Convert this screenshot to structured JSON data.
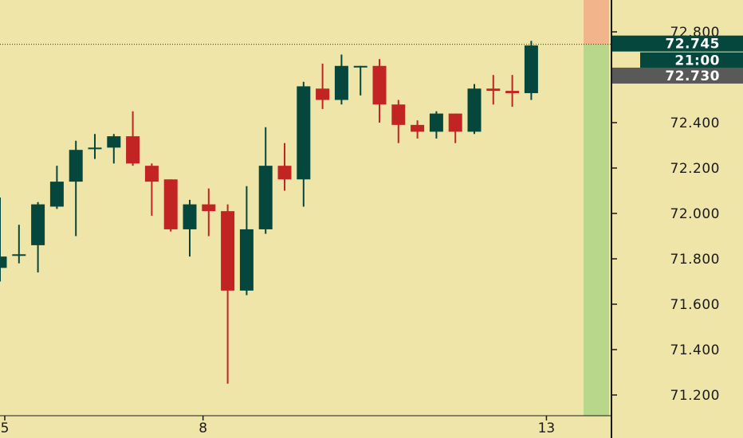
{
  "colors": {
    "background": "#efe5a8",
    "bull": "#05473c",
    "bear": "#c22424",
    "axis": "#1a1a1a",
    "zone_upper": "#f2b48a",
    "zone_lower": "#b9d78a",
    "badge_price": "#05473c",
    "badge_prev": "#595959"
  },
  "price_badge": {
    "value": "72.745",
    "countdown": "21:00"
  },
  "prev_badge": {
    "value": "72.730"
  },
  "chart_data": {
    "type": "candlestick",
    "ylim": [
      71.05,
      72.9
    ],
    "y_ticks": [
      "72.800",
      "72.400",
      "72.200",
      "72.000",
      "71.800",
      "71.600",
      "71.400",
      "71.200"
    ],
    "x_ticks": [
      "5",
      "8",
      "13"
    ],
    "last_price": 72.745,
    "candles": [
      {
        "o": 71.76,
        "h": 72.07,
        "l": 71.7,
        "c": 71.81
      },
      {
        "o": 71.82,
        "h": 71.95,
        "l": 71.78,
        "c": 71.82
      },
      {
        "o": 71.86,
        "h": 72.05,
        "l": 71.74,
        "c": 72.04
      },
      {
        "o": 72.03,
        "h": 72.21,
        "l": 72.02,
        "c": 72.14
      },
      {
        "o": 72.14,
        "h": 72.32,
        "l": 71.9,
        "c": 72.28
      },
      {
        "o": 72.29,
        "h": 72.35,
        "l": 72.24,
        "c": 72.29
      },
      {
        "o": 72.29,
        "h": 72.35,
        "l": 72.22,
        "c": 72.34
      },
      {
        "o": 72.34,
        "h": 72.45,
        "l": 72.21,
        "c": 72.22
      },
      {
        "o": 72.21,
        "h": 72.22,
        "l": 71.99,
        "c": 72.14
      },
      {
        "o": 72.15,
        "h": 72.15,
        "l": 71.92,
        "c": 71.93
      },
      {
        "o": 71.93,
        "h": 72.06,
        "l": 71.81,
        "c": 72.04
      },
      {
        "o": 72.04,
        "h": 72.11,
        "l": 71.9,
        "c": 72.01
      },
      {
        "o": 72.01,
        "h": 72.04,
        "l": 71.25,
        "c": 71.66
      },
      {
        "o": 71.66,
        "h": 72.12,
        "l": 71.64,
        "c": 71.93
      },
      {
        "o": 71.93,
        "h": 72.38,
        "l": 71.91,
        "c": 72.21
      },
      {
        "o": 72.21,
        "h": 72.31,
        "l": 72.1,
        "c": 72.15
      },
      {
        "o": 72.15,
        "h": 72.58,
        "l": 72.03,
        "c": 72.56
      },
      {
        "o": 72.55,
        "h": 72.66,
        "l": 72.46,
        "c": 72.5
      },
      {
        "o": 72.5,
        "h": 72.7,
        "l": 72.48,
        "c": 72.65
      },
      {
        "o": 72.65,
        "h": 72.65,
        "l": 72.52,
        "c": 72.65
      },
      {
        "o": 72.65,
        "h": 72.68,
        "l": 72.4,
        "c": 72.48
      },
      {
        "o": 72.48,
        "h": 72.5,
        "l": 72.31,
        "c": 72.39
      },
      {
        "o": 72.39,
        "h": 72.41,
        "l": 72.33,
        "c": 72.36
      },
      {
        "o": 72.36,
        "h": 72.45,
        "l": 72.33,
        "c": 72.44
      },
      {
        "o": 72.44,
        "h": 72.44,
        "l": 72.31,
        "c": 72.36
      },
      {
        "o": 72.36,
        "h": 72.57,
        "l": 72.35,
        "c": 72.55
      },
      {
        "o": 72.55,
        "h": 72.61,
        "l": 72.48,
        "c": 72.54
      },
      {
        "o": 72.54,
        "h": 72.61,
        "l": 72.47,
        "c": 72.53
      },
      {
        "o": 72.53,
        "h": 72.76,
        "l": 72.5,
        "c": 72.74
      }
    ]
  }
}
